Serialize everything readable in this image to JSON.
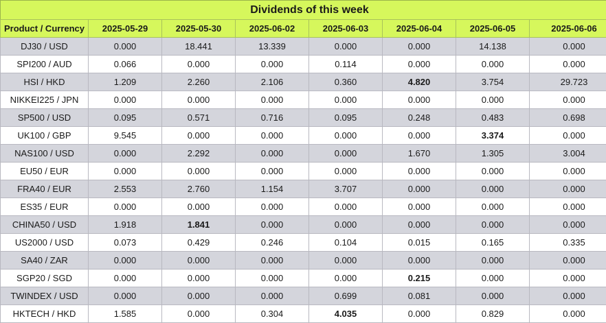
{
  "title": "Dividends of this week",
  "header": {
    "product_label": "Product / Currency",
    "dates": [
      "2025-05-29",
      "2025-05-30",
      "2025-06-02",
      "2025-06-03",
      "2025-06-04",
      "2025-06-05",
      "2025-06-06"
    ]
  },
  "rows": [
    {
      "product": "DJ30 / USD",
      "values": [
        "0.000",
        "18.441",
        "13.339",
        "0.000",
        "0.000",
        "14.138",
        "0.000"
      ],
      "bold": []
    },
    {
      "product": "SPI200 / AUD",
      "values": [
        "0.066",
        "0.000",
        "0.000",
        "0.114",
        "0.000",
        "0.000",
        "0.000"
      ],
      "bold": []
    },
    {
      "product": "HSI / HKD",
      "values": [
        "1.209",
        "2.260",
        "2.106",
        "0.360",
        "4.820",
        "3.754",
        "29.723"
      ],
      "bold": [
        4
      ]
    },
    {
      "product": "NIKKEI225 / JPN",
      "values": [
        "0.000",
        "0.000",
        "0.000",
        "0.000",
        "0.000",
        "0.000",
        "0.000"
      ],
      "bold": []
    },
    {
      "product": "SP500 / USD",
      "values": [
        "0.095",
        "0.571",
        "0.716",
        "0.095",
        "0.248",
        "0.483",
        "0.698"
      ],
      "bold": []
    },
    {
      "product": "UK100 / GBP",
      "values": [
        "9.545",
        "0.000",
        "0.000",
        "0.000",
        "0.000",
        "3.374",
        "0.000"
      ],
      "bold": [
        5
      ]
    },
    {
      "product": "NAS100 / USD",
      "values": [
        "0.000",
        "2.292",
        "0.000",
        "0.000",
        "1.670",
        "1.305",
        "3.004"
      ],
      "bold": []
    },
    {
      "product": "EU50 / EUR",
      "values": [
        "0.000",
        "0.000",
        "0.000",
        "0.000",
        "0.000",
        "0.000",
        "0.000"
      ],
      "bold": []
    },
    {
      "product": "FRA40 / EUR",
      "values": [
        "2.553",
        "2.760",
        "1.154",
        "3.707",
        "0.000",
        "0.000",
        "0.000"
      ],
      "bold": []
    },
    {
      "product": "ES35 / EUR",
      "values": [
        "0.000",
        "0.000",
        "0.000",
        "0.000",
        "0.000",
        "0.000",
        "0.000"
      ],
      "bold": []
    },
    {
      "product": "CHINA50 / USD",
      "values": [
        "1.918",
        "1.841",
        "0.000",
        "0.000",
        "0.000",
        "0.000",
        "0.000"
      ],
      "bold": [
        1
      ]
    },
    {
      "product": "US2000 / USD",
      "values": [
        "0.073",
        "0.429",
        "0.246",
        "0.104",
        "0.015",
        "0.165",
        "0.335"
      ],
      "bold": []
    },
    {
      "product": "SA40 / ZAR",
      "values": [
        "0.000",
        "0.000",
        "0.000",
        "0.000",
        "0.000",
        "0.000",
        "0.000"
      ],
      "bold": []
    },
    {
      "product": "SGP20 / SGD",
      "values": [
        "0.000",
        "0.000",
        "0.000",
        "0.000",
        "0.215",
        "0.000",
        "0.000"
      ],
      "bold": [
        4
      ]
    },
    {
      "product": "TWINDEX / USD",
      "values": [
        "0.000",
        "0.000",
        "0.000",
        "0.699",
        "0.081",
        "0.000",
        "0.000"
      ],
      "bold": []
    },
    {
      "product": "HKTECH / HKD",
      "values": [
        "1.585",
        "0.000",
        "0.304",
        "4.035",
        "0.000",
        "0.829",
        "0.000"
      ],
      "bold": [
        3
      ]
    }
  ]
}
